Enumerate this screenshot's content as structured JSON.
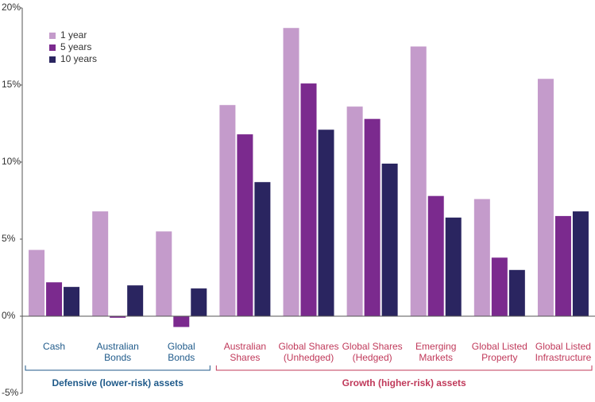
{
  "chart_data": {
    "type": "bar",
    "ylim": [
      -5,
      20
    ],
    "yticks": [
      {
        "value": 20,
        "label": "20%"
      },
      {
        "value": 15,
        "label": "15%"
      },
      {
        "value": 10,
        "label": "10%"
      },
      {
        "value": 5,
        "label": "5%"
      },
      {
        "value": 0,
        "label": "0%"
      },
      {
        "value": -5,
        "label": "-5%"
      }
    ],
    "groups": [
      {
        "label": "Defensive (lower-risk) assets",
        "color": "#1f5a8a",
        "categories": [
          [
            "Cash"
          ],
          [
            "Australian",
            "Bonds"
          ],
          [
            "Global",
            "Bonds"
          ]
        ]
      },
      {
        "label": "Growth (higher-risk) assets",
        "color": "#c0395a",
        "categories": [
          [
            "Australian",
            "Shares"
          ],
          [
            "Global Shares",
            "(Unhedged)"
          ],
          [
            "Global Shares",
            "(Hedged)"
          ],
          [
            "Emerging",
            "Markets"
          ],
          [
            "Global Listed",
            "Property"
          ],
          [
            "Global Listed",
            "Infrastructure"
          ]
        ]
      }
    ],
    "series": [
      {
        "name": "1 year",
        "color": "#c49bcb",
        "values": [
          4.3,
          6.8,
          5.5,
          13.7,
          18.7,
          13.6,
          17.5,
          7.6,
          15.4
        ]
      },
      {
        "name": "5 years",
        "color": "#7b2a8e",
        "values": [
          2.2,
          -0.1,
          -0.7,
          11.8,
          15.1,
          12.8,
          7.8,
          3.8,
          6.5
        ]
      },
      {
        "name": "10 years",
        "color": "#2a2560",
        "values": [
          1.9,
          2.0,
          1.8,
          8.7,
          12.1,
          9.9,
          6.4,
          3.0,
          6.8
        ]
      }
    ],
    "legend": "upper left"
  }
}
